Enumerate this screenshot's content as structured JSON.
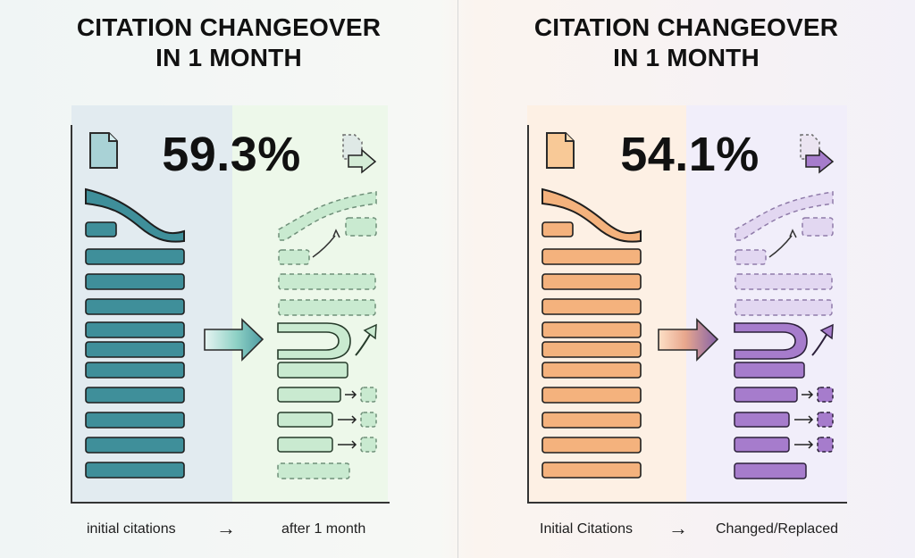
{
  "panels": [
    {
      "title_line1": "CITATION CHANGEOVER",
      "title_line2": "IN 1 MONTH",
      "percentage": "59.3%",
      "label_left": "initial citations",
      "arrow": "→",
      "label_right": "after 1 month",
      "colors": {
        "accent": "#3f8f9a",
        "accent_dark": "#2e6f78",
        "after_fill": "#c9ead0",
        "after_stroke": "#79a887",
        "highlight": "#e7eef2",
        "after_background": "#edf8ea"
      }
    },
    {
      "title_line1": "CITATION CHANGEOVER",
      "title_line2": "IN 1 MONTH",
      "percentage": "54.1%",
      "label_left": "Initial Citations",
      "arrow": "→",
      "label_right": "Changed/Replaced",
      "colors": {
        "accent": "#f4b27d",
        "accent_dark": "#d48d55",
        "after_fill": "#e2d7f1",
        "after_stroke": "#9c87c0",
        "highlight": "#fdf0e4",
        "after_background": "#f1eefa"
      }
    }
  ]
}
